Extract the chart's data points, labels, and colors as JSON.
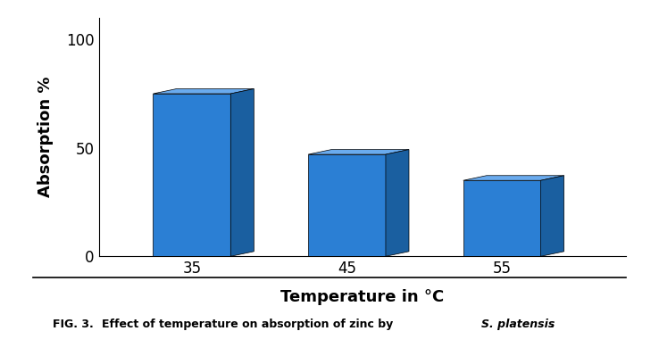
{
  "categories": [
    "35",
    "45",
    "55"
  ],
  "values": [
    75,
    47,
    35
  ],
  "bar_color_front": "#1E6FBF",
  "bar_color_top": "#4DA6FF",
  "bar_color_side": "#1550A0",
  "xlabel": "Temperature in °C",
  "ylabel": "Absorption %",
  "ylim": [
    0,
    110
  ],
  "yticks": [
    0,
    50,
    100
  ],
  "title_text": "FIG. 3. ",
  "caption_bold": "Effect of temperature on absorption of zinc by ",
  "caption_italic": "S. platensis",
  "caption_end": ".",
  "bar_width": 0.5,
  "depth": 0.15,
  "bar_color_hex": "#2B7FD4",
  "top_color_hex": "#6AABEE",
  "side_color_hex": "#1A5FA0"
}
